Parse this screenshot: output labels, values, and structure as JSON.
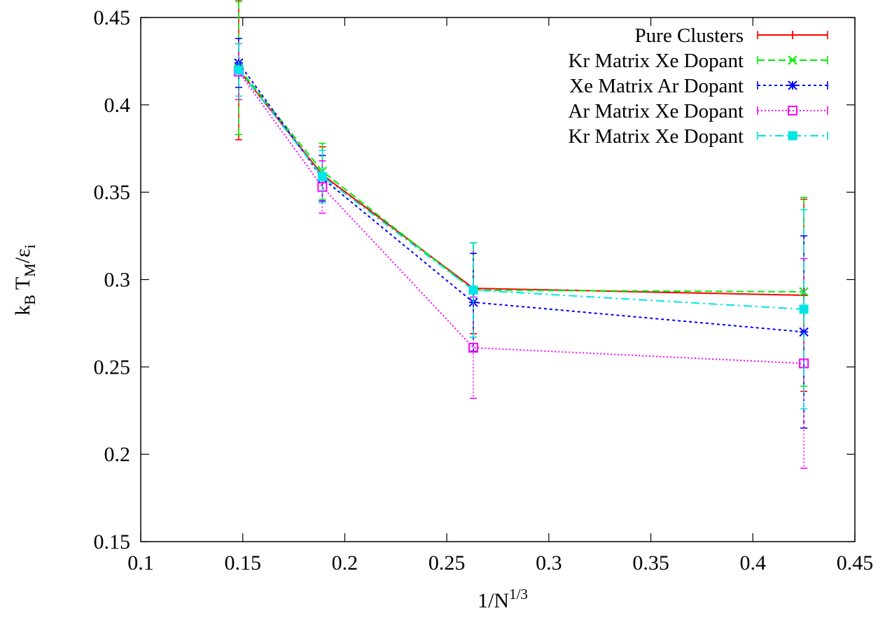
{
  "chart_data": {
    "type": "line",
    "title": "",
    "xlabel": "1/N",
    "xlabel_sup": "1/3",
    "ylabel_parts": {
      "k": "k",
      "k_sub": "B",
      "t": "T",
      "t_sub": "M",
      "slash": "/",
      "eps": "ε",
      "eps_sub": "i"
    },
    "xlim": [
      0.1,
      0.45
    ],
    "ylim": [
      0.15,
      0.45
    ],
    "x_ticks": [
      "0.1",
      "0.15",
      "0.2",
      "0.25",
      "0.3",
      "0.35",
      "0.4",
      "0.45"
    ],
    "y_ticks": [
      "0.15",
      "0.2",
      "0.25",
      "0.3",
      "0.35",
      "0.4",
      "0.45"
    ],
    "grid": false,
    "legend_position": "top-right",
    "series": [
      {
        "name": "Pure Clusters",
        "color": "#ff0000",
        "dash": "solid",
        "marker": "plus",
        "x": [
          0.148,
          0.189,
          0.263,
          0.425
        ],
        "y": [
          0.42,
          0.36,
          0.295,
          0.291
        ],
        "err": [
          0.04,
          0.016,
          0.026,
          0.055
        ]
      },
      {
        "name": "Kr Matrix Xe Dopant",
        "color": "#00ee00",
        "dash": "dashed",
        "marker": "x",
        "x": [
          0.148,
          0.189,
          0.263,
          0.425
        ],
        "y": [
          0.421,
          0.362,
          0.294,
          0.293
        ],
        "err": [
          0.038,
          0.016,
          0.027,
          0.054
        ]
      },
      {
        "name": "Xe Matrix Ar Dopant",
        "color": "#0000ff",
        "dash": "dotted",
        "marker": "star",
        "x": [
          0.148,
          0.189,
          0.263,
          0.425
        ],
        "y": [
          0.424,
          0.358,
          0.287,
          0.27
        ],
        "err": [
          0.014,
          0.013,
          0.028,
          0.055
        ]
      },
      {
        "name": "Ar Matrix Xe Dopant",
        "color": "#ff00ff",
        "dash": "fine-dotted",
        "marker": "open-square",
        "x": [
          0.148,
          0.189,
          0.263,
          0.425
        ],
        "y": [
          0.419,
          0.353,
          0.261,
          0.252
        ],
        "err": [
          0.016,
          0.015,
          0.029,
          0.06
        ]
      },
      {
        "name": "Kr Matrix Xe Dopant",
        "color": "#00e5e5",
        "dash": "dash-dot",
        "marker": "filled-square",
        "x": [
          0.148,
          0.189,
          0.263,
          0.425
        ],
        "y": [
          0.42,
          0.359,
          0.294,
          0.283
        ],
        "err": [
          0.015,
          0.015,
          0.027,
          0.057
        ]
      }
    ]
  }
}
